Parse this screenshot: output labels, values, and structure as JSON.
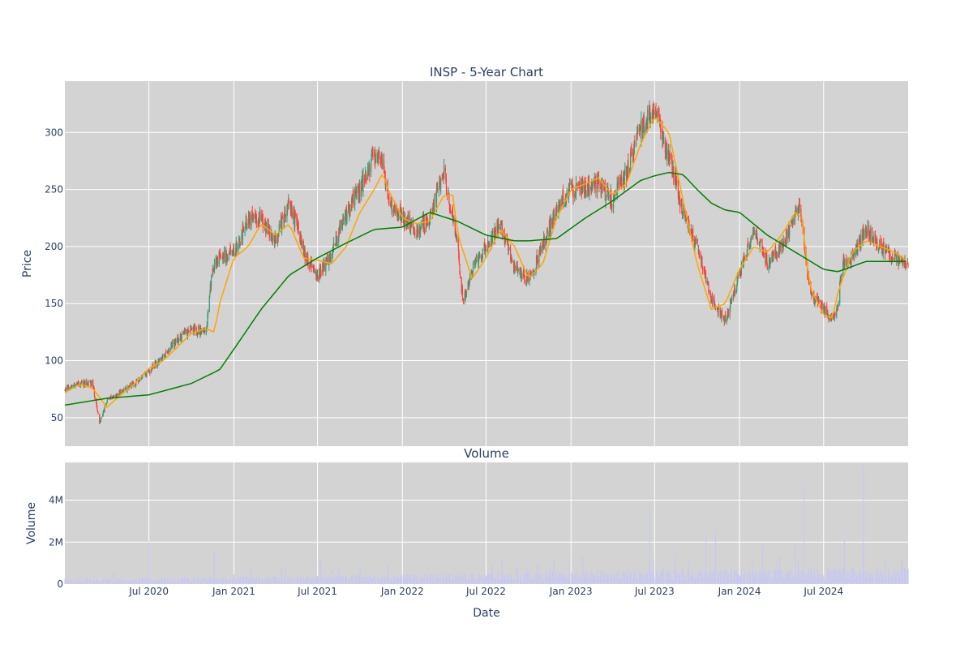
{
  "chart_data": [
    {
      "type": "candlestick",
      "title": "INSP - 5-Year Chart",
      "ylabel": "Price",
      "ylim": [
        25,
        345
      ],
      "yticks": [
        50,
        100,
        150,
        200,
        250,
        300
      ],
      "xlim": [
        "2020-01-01",
        "2024-12-31"
      ],
      "grid": true,
      "increasing_color": "#3d9970",
      "decreasing_color": "#ff4136",
      "series": [
        {
          "name": "Price",
          "color": "#3d9970",
          "x": [
            "2020-01-01",
            "2020-02-01",
            "2020-03-01",
            "2020-03-16",
            "2020-04-01",
            "2020-05-01",
            "2020-06-01",
            "2020-07-01",
            "2020-08-01",
            "2020-09-01",
            "2020-10-01",
            "2020-11-01",
            "2020-11-15",
            "2020-12-01",
            "2021-01-01",
            "2021-02-01",
            "2021-03-01",
            "2021-04-01",
            "2021-05-01",
            "2021-06-01",
            "2021-07-01",
            "2021-08-01",
            "2021-09-01",
            "2021-10-01",
            "2021-11-01",
            "2021-11-20",
            "2021-12-01",
            "2022-01-01",
            "2022-02-01",
            "2022-03-01",
            "2022-04-01",
            "2022-05-01",
            "2022-05-12",
            "2022-06-01",
            "2022-07-01",
            "2022-08-01",
            "2022-09-01",
            "2022-10-01",
            "2022-11-01",
            "2022-12-01",
            "2023-01-01",
            "2023-02-01",
            "2023-03-01",
            "2023-04-01",
            "2023-05-01",
            "2023-06-01",
            "2023-07-01",
            "2023-08-01",
            "2023-09-01",
            "2023-10-01",
            "2023-11-01",
            "2023-12-01",
            "2024-01-01",
            "2024-02-01",
            "2024-03-01",
            "2024-04-01",
            "2024-05-01",
            "2024-05-10",
            "2024-06-01",
            "2024-07-01",
            "2024-07-20",
            "2024-08-01",
            "2024-08-10",
            "2024-09-01",
            "2024-10-01",
            "2024-11-01",
            "2024-12-01",
            "2024-12-31"
          ],
          "values": [
            75,
            80,
            80,
            45,
            65,
            72,
            80,
            90,
            105,
            118,
            128,
            125,
            178,
            190,
            195,
            225,
            225,
            205,
            240,
            195,
            175,
            195,
            230,
            250,
            280,
            270,
            240,
            225,
            215,
            225,
            265,
            200,
            150,
            180,
            200,
            220,
            180,
            170,
            200,
            235,
            250,
            250,
            255,
            240,
            265,
            305,
            320,
            280,
            230,
            200,
            155,
            135,
            175,
            215,
            185,
            200,
            225,
            240,
            160,
            145,
            135,
            150,
            185,
            190,
            215,
            200,
            190,
            185
          ]
        }
      ]
    },
    {
      "type": "line",
      "title": "",
      "series": [
        {
          "name": "",
          "color": "#ffa500",
          "x": [
            "2020-01-01",
            "2020-02-01",
            "2020-03-01",
            "2020-04-01",
            "2020-05-01",
            "2020-06-01",
            "2020-07-01",
            "2020-08-01",
            "2020-09-01",
            "2020-10-01",
            "2020-11-01",
            "2020-11-20",
            "2020-12-01",
            "2021-01-01",
            "2021-02-01",
            "2021-03-01",
            "2021-04-01",
            "2021-05-01",
            "2021-06-01",
            "2021-07-01",
            "2021-08-01",
            "2021-09-01",
            "2021-10-01",
            "2021-11-01",
            "2021-11-20",
            "2021-12-01",
            "2022-01-01",
            "2022-02-01",
            "2022-03-01",
            "2022-04-01",
            "2022-04-20",
            "2022-05-01",
            "2022-06-01",
            "2022-07-01",
            "2022-08-01",
            "2022-09-01",
            "2022-10-01",
            "2022-11-01",
            "2022-12-01",
            "2023-01-01",
            "2023-02-01",
            "2023-03-01",
            "2023-04-01",
            "2023-05-01",
            "2023-06-01",
            "2023-07-01",
            "2023-08-01",
            "2023-09-01",
            "2023-10-01",
            "2023-11-01",
            "2023-12-01",
            "2024-01-01",
            "2024-02-01",
            "2024-03-01",
            "2024-04-01",
            "2024-05-01",
            "2024-05-15",
            "2024-06-01",
            "2024-07-01",
            "2024-07-20",
            "2024-08-01",
            "2024-09-01",
            "2024-10-01",
            "2024-11-01",
            "2024-12-01",
            "2024-12-31"
          ],
          "values": [
            72,
            79,
            76,
            59,
            70,
            80,
            93,
            100,
            112,
            124,
            128,
            125,
            150,
            190,
            200,
            220,
            210,
            220,
            190,
            188,
            185,
            200,
            230,
            250,
            265,
            250,
            225,
            220,
            222,
            245,
            245,
            210,
            172,
            190,
            215,
            200,
            172,
            185,
            225,
            250,
            255,
            260,
            245,
            255,
            290,
            314,
            300,
            240,
            185,
            145,
            150,
            180,
            200,
            195,
            210,
            230,
            225,
            165,
            140,
            137,
            160,
            195,
            205,
            200,
            195,
            187
          ]
        },
        {
          "name": "",
          "color": "#008000",
          "x": [
            "2020-01-01",
            "2020-04-01",
            "2020-07-01",
            "2020-10-01",
            "2020-12-01",
            "2021-01-01",
            "2021-03-01",
            "2021-05-01",
            "2021-07-01",
            "2021-09-01",
            "2021-11-01",
            "2022-01-01",
            "2022-03-01",
            "2022-05-01",
            "2022-07-01",
            "2022-09-01",
            "2022-10-01",
            "2022-12-01",
            "2023-02-01",
            "2023-04-01",
            "2023-06-01",
            "2023-07-01",
            "2023-08-01",
            "2023-09-01",
            "2023-10-01",
            "2023-11-01",
            "2023-12-01",
            "2024-01-01",
            "2024-03-01",
            "2024-05-01",
            "2024-07-01",
            "2024-08-01",
            "2024-10-01",
            "2024-12-31"
          ],
          "values": [
            61,
            67,
            70,
            80,
            92,
            110,
            145,
            175,
            190,
            203,
            215,
            217,
            230,
            222,
            210,
            205,
            205,
            207,
            225,
            240,
            258,
            262,
            265,
            263,
            250,
            238,
            232,
            230,
            210,
            195,
            180,
            178,
            187,
            187
          ]
        }
      ]
    },
    {
      "type": "bar",
      "title": "Volume",
      "xlabel": "Date",
      "ylabel": "Volume",
      "ylim": [
        0,
        5800000
      ],
      "yticks": [
        0,
        2000000,
        4000000
      ],
      "ytick_labels": [
        "0",
        "2M",
        "4M"
      ],
      "xtick_labels": [
        "Jul 2020",
        "Jan 2021",
        "Jul 2021",
        "Jan 2022",
        "Jul 2022",
        "Jan 2023",
        "Jul 2023",
        "Jan 2024",
        "Jul 2024"
      ],
      "bar_color": "#c8c8f0",
      "spikes": [
        {
          "x": "2020-02-15",
          "value": 2100000
        },
        {
          "x": "2020-07-01",
          "value": 2000000
        },
        {
          "x": "2020-11-20",
          "value": 1500000
        },
        {
          "x": "2021-07-08",
          "value": 1200000
        },
        {
          "x": "2022-07-15",
          "value": 900000
        },
        {
          "x": "2022-10-20",
          "value": 1000000
        },
        {
          "x": "2023-06-20",
          "value": 3700000
        },
        {
          "x": "2023-08-15",
          "value": 1500000
        },
        {
          "x": "2023-10-20",
          "value": 2300000
        },
        {
          "x": "2023-11-10",
          "value": 2600000
        },
        {
          "x": "2024-02-20",
          "value": 1900000
        },
        {
          "x": "2024-05-01",
          "value": 1900000
        },
        {
          "x": "2024-05-20",
          "value": 4700000
        },
        {
          "x": "2024-07-20",
          "value": 3100000
        },
        {
          "x": "2024-08-15",
          "value": 2100000
        },
        {
          "x": "2024-09-25",
          "value": 5600000
        }
      ]
    }
  ]
}
